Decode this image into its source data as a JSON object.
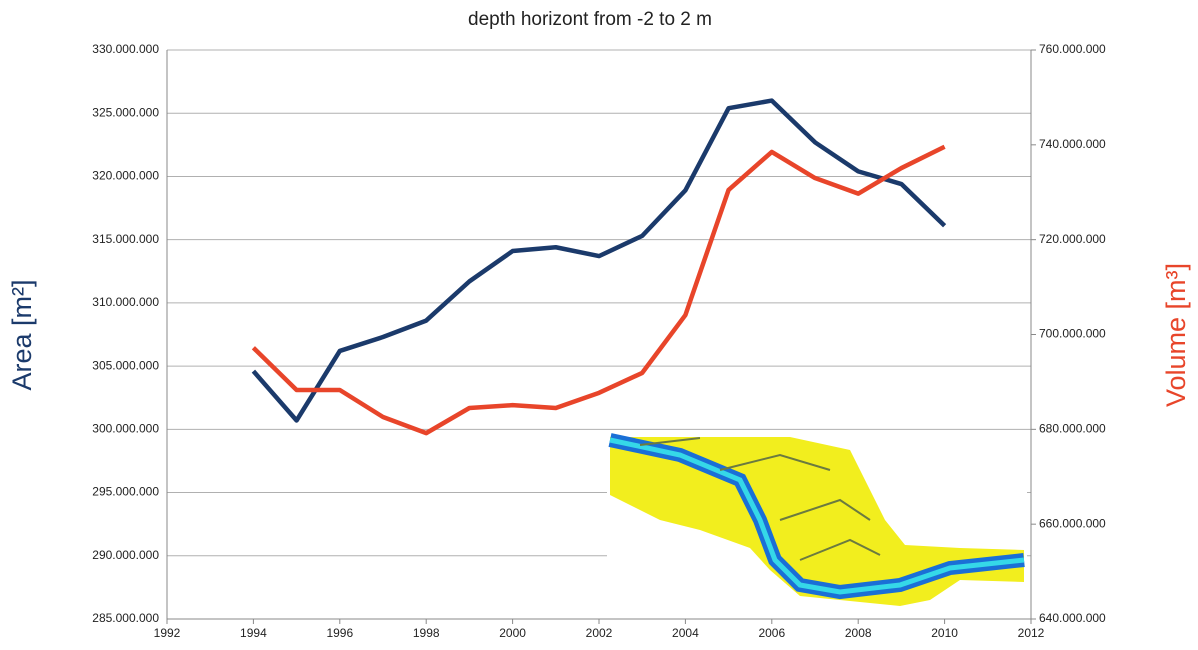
{
  "chart_data": {
    "type": "line",
    "title": "depth horizont from -2 to 2 m",
    "ylabel": "Area [m²]",
    "y2label": "Volume [m³]",
    "x": [
      1994,
      1995,
      1996,
      1997,
      1998,
      1999,
      2000,
      2001,
      2002,
      2003,
      2004,
      2005,
      2006,
      2007,
      2008,
      2009,
      2010
    ],
    "series": [
      {
        "color": "#1b3a6b",
        "values": [
          304600000,
          300700000,
          306200000,
          307300000,
          308600000,
          311700000,
          314100000,
          314400000,
          313700000,
          315300000,
          318900000,
          325400000,
          326000000,
          322700000,
          320400000,
          319400000,
          316100000
        ]
      },
      {
        "color": "#e8452a",
        "axis": "y2",
        "values": [
          697200000,
          688300000,
          688300000,
          682600000,
          679200000,
          684500000,
          685100000,
          684500000,
          687700000,
          691900000,
          704100000,
          730500000,
          738500000,
          733000000,
          729700000,
          735100000,
          739600000
        ]
      }
    ],
    "xlim": [
      1992,
      2012
    ],
    "xticks": [
      1992,
      1994,
      1996,
      1998,
      2000,
      2002,
      2004,
      2006,
      2008,
      2010,
      2012
    ],
    "ylim": [
      285000000,
      330000000
    ],
    "yticks": [
      {
        "value": 285000000,
        "label": "285.000.000"
      },
      {
        "value": 290000000,
        "label": "290.000.000"
      },
      {
        "value": 295000000,
        "label": "295.000.000"
      },
      {
        "value": 300000000,
        "label": "300.000.000"
      },
      {
        "value": 305000000,
        "label": "305.000.000"
      },
      {
        "value": 310000000,
        "label": "310.000.000"
      },
      {
        "value": 315000000,
        "label": "315.000.000"
      },
      {
        "value": 320000000,
        "label": "320.000.000"
      },
      {
        "value": 325000000,
        "label": "325.000.000"
      },
      {
        "value": 330000000,
        "label": "330.000.000"
      }
    ],
    "y2lim": [
      640000000,
      760000000
    ],
    "y2ticks": [
      {
        "value": 640000000,
        "label": "640.000.000"
      },
      {
        "value": 660000000,
        "label": "660.000.000"
      },
      {
        "value": 680000000,
        "label": "680.000.000"
      },
      {
        "value": 700000000,
        "label": "700.000.000"
      },
      {
        "value": 720000000,
        "label": "720.000.000"
      },
      {
        "value": 740000000,
        "label": "740.000.000"
      },
      {
        "value": 760000000,
        "label": "760.000.000"
      }
    ],
    "grid": true
  }
}
